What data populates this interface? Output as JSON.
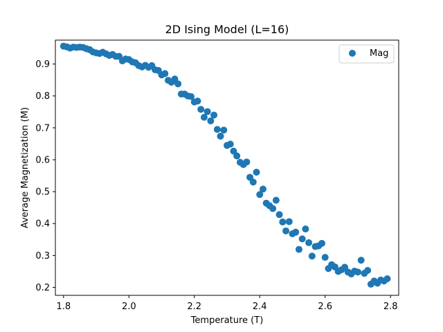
{
  "chart_data": {
    "type": "scatter",
    "title": "2D Ising Model (L=16)",
    "xlabel": "Temperature (T)",
    "ylabel": "Average Magnetization (M)",
    "xlim": [
      1.775,
      2.825
    ],
    "ylim": [
      0.175,
      0.975
    ],
    "xticks": [
      1.8,
      2.0,
      2.2,
      2.4,
      2.6,
      2.8
    ],
    "xtick_labels": [
      "1.8",
      "2.0",
      "2.2",
      "2.4",
      "2.6",
      "2.8"
    ],
    "yticks": [
      0.2,
      0.3,
      0.4,
      0.5,
      0.6,
      0.7,
      0.8,
      0.9
    ],
    "ytick_labels": [
      "0.2",
      "0.3",
      "0.4",
      "0.5",
      "0.6",
      "0.7",
      "0.8",
      "0.9"
    ],
    "grid": false,
    "legend": "top-right",
    "series": [
      {
        "name": "Mag",
        "color": "#1f77b4",
        "points": [
          [
            1.8,
            0.956
          ],
          [
            1.81,
            0.954
          ],
          [
            1.82,
            0.95
          ],
          [
            1.83,
            0.953
          ],
          [
            1.84,
            0.952
          ],
          [
            1.85,
            0.953
          ],
          [
            1.86,
            0.952
          ],
          [
            1.87,
            0.948
          ],
          [
            1.88,
            0.945
          ],
          [
            1.89,
            0.938
          ],
          [
            1.9,
            0.935
          ],
          [
            1.91,
            0.933
          ],
          [
            1.92,
            0.937
          ],
          [
            1.93,
            0.932
          ],
          [
            1.94,
            0.927
          ],
          [
            1.95,
            0.93
          ],
          [
            1.96,
            0.924
          ],
          [
            1.97,
            0.924
          ],
          [
            1.98,
            0.91
          ],
          [
            1.99,
            0.916
          ],
          [
            2.0,
            0.914
          ],
          [
            2.01,
            0.907
          ],
          [
            2.02,
            0.904
          ],
          [
            2.03,
            0.895
          ],
          [
            2.04,
            0.891
          ],
          [
            2.05,
            0.896
          ],
          [
            2.06,
            0.89
          ],
          [
            2.07,
            0.895
          ],
          [
            2.08,
            0.882
          ],
          [
            2.09,
            0.88
          ],
          [
            2.1,
            0.866
          ],
          [
            2.11,
            0.87
          ],
          [
            2.12,
            0.849
          ],
          [
            2.13,
            0.843
          ],
          [
            2.14,
            0.853
          ],
          [
            2.15,
            0.838
          ],
          [
            2.16,
            0.806
          ],
          [
            2.17,
            0.806
          ],
          [
            2.18,
            0.8
          ],
          [
            2.19,
            0.798
          ],
          [
            2.2,
            0.781
          ],
          [
            2.21,
            0.784
          ],
          [
            2.22,
            0.758
          ],
          [
            2.23,
            0.733
          ],
          [
            2.24,
            0.751
          ],
          [
            2.25,
            0.722
          ],
          [
            2.26,
            0.74
          ],
          [
            2.27,
            0.695
          ],
          [
            2.28,
            0.674
          ],
          [
            2.29,
            0.693
          ],
          [
            2.3,
            0.645
          ],
          [
            2.31,
            0.649
          ],
          [
            2.32,
            0.627
          ],
          [
            2.33,
            0.612
          ],
          [
            2.34,
            0.592
          ],
          [
            2.35,
            0.585
          ],
          [
            2.36,
            0.593
          ],
          [
            2.37,
            0.545
          ],
          [
            2.38,
            0.53
          ],
          [
            2.39,
            0.561
          ],
          [
            2.4,
            0.491
          ],
          [
            2.41,
            0.508
          ],
          [
            2.42,
            0.464
          ],
          [
            2.43,
            0.456
          ],
          [
            2.44,
            0.447
          ],
          [
            2.45,
            0.473
          ],
          [
            2.46,
            0.428
          ],
          [
            2.47,
            0.405
          ],
          [
            2.48,
            0.377
          ],
          [
            2.49,
            0.406
          ],
          [
            2.5,
            0.368
          ],
          [
            2.51,
            0.373
          ],
          [
            2.52,
            0.319
          ],
          [
            2.53,
            0.352
          ],
          [
            2.54,
            0.383
          ],
          [
            2.55,
            0.34
          ],
          [
            2.56,
            0.298
          ],
          [
            2.57,
            0.328
          ],
          [
            2.58,
            0.33
          ],
          [
            2.59,
            0.338
          ],
          [
            2.6,
            0.294
          ],
          [
            2.61,
            0.259
          ],
          [
            2.62,
            0.271
          ],
          [
            2.63,
            0.264
          ],
          [
            2.64,
            0.25
          ],
          [
            2.65,
            0.255
          ],
          [
            2.66,
            0.263
          ],
          [
            2.67,
            0.248
          ],
          [
            2.68,
            0.242
          ],
          [
            2.69,
            0.251
          ],
          [
            2.7,
            0.248
          ],
          [
            2.71,
            0.285
          ],
          [
            2.72,
            0.244
          ],
          [
            2.73,
            0.253
          ],
          [
            2.74,
            0.21
          ],
          [
            2.75,
            0.22
          ],
          [
            2.76,
            0.213
          ],
          [
            2.77,
            0.223
          ],
          [
            2.78,
            0.22
          ],
          [
            2.79,
            0.227
          ]
        ]
      }
    ]
  }
}
